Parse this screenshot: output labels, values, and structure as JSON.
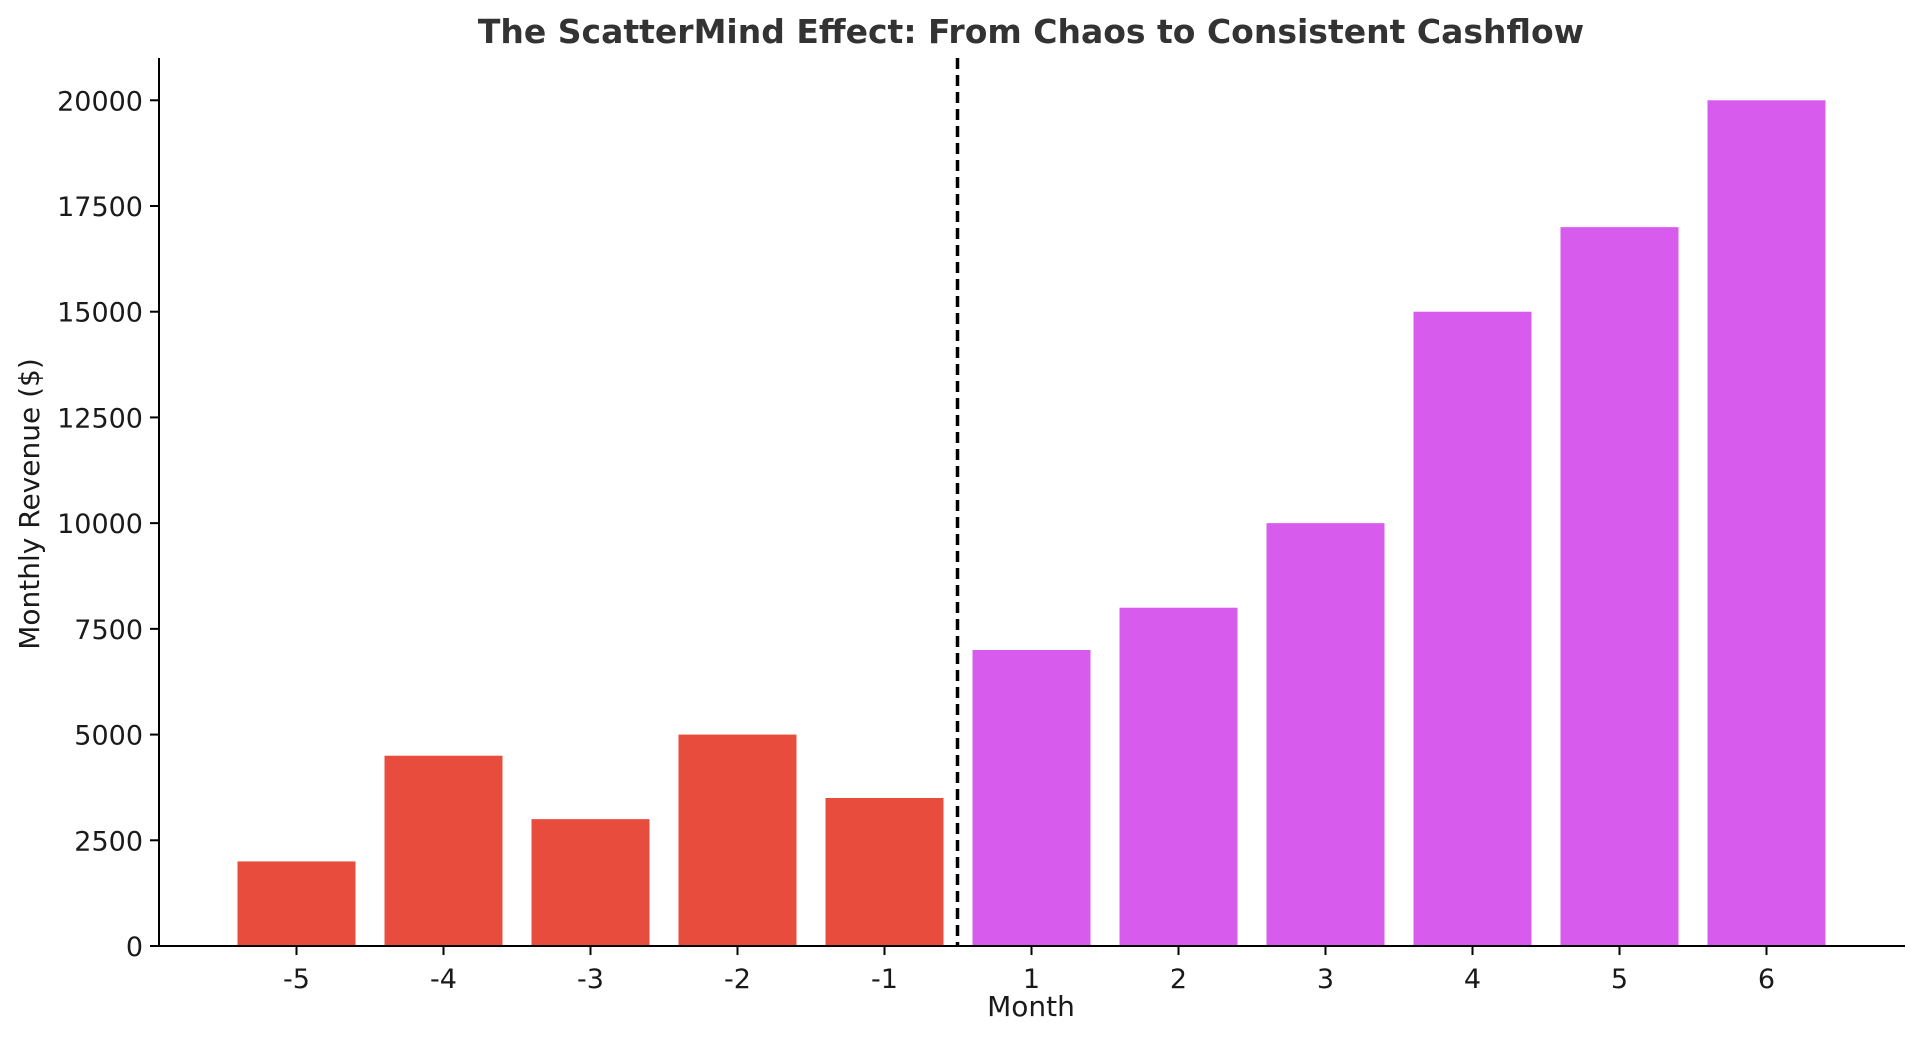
{
  "chart_data": {
    "type": "bar",
    "title": "The ScatterMind Effect: From Chaos to Consistent Cashflow",
    "xlabel": "Month",
    "ylabel": "Monthly Revenue ($)",
    "categories": [
      "-5",
      "-4",
      "-3",
      "-2",
      "-1",
      "1",
      "2",
      "3",
      "4",
      "5",
      "6"
    ],
    "values": [
      2000,
      4500,
      3000,
      5000,
      3500,
      7000,
      8000,
      10000,
      15000,
      17000,
      20000
    ],
    "bar_colors": [
      "#e74c3c",
      "#e74c3c",
      "#e74c3c",
      "#e74c3c",
      "#e74c3c",
      "#d75bec",
      "#d75bec",
      "#d75bec",
      "#d75bec",
      "#d75bec",
      "#d75bec"
    ],
    "ylim": [
      0,
      21000
    ],
    "yticks": [
      0,
      2500,
      5000,
      7500,
      10000,
      12500,
      15000,
      17500,
      20000
    ],
    "divider": {
      "between": [
        "-1",
        "1"
      ],
      "style": "dashed",
      "color": "#000000"
    },
    "grid": false,
    "legend": "none"
  }
}
